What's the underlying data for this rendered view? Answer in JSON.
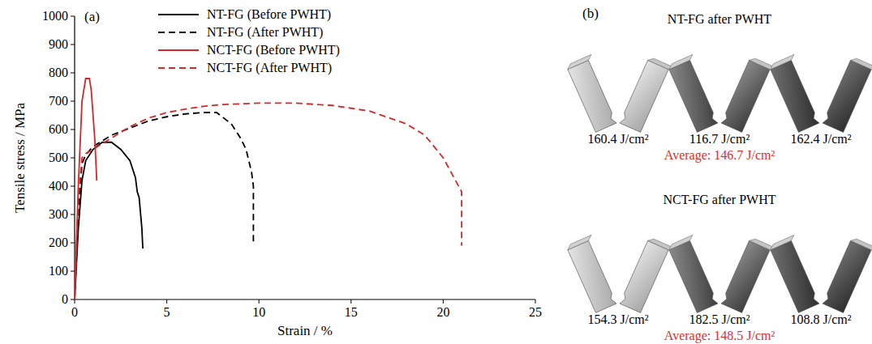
{
  "chart_data": {
    "type": "line",
    "title": "(a)",
    "x_label": "Strain / %",
    "y_label": "Tensile stress / MPa",
    "xlim": [
      0,
      25
    ],
    "xticks": [
      0,
      5,
      10,
      15,
      20,
      25
    ],
    "ylim": [
      0,
      1000
    ],
    "yticks": [
      0,
      100,
      200,
      300,
      400,
      500,
      600,
      700,
      800,
      900,
      1000
    ],
    "grid": false,
    "legend": "top",
    "series": [
      {
        "name": "NT-FG (Before PWHT)",
        "color": "#000000",
        "line_style": "solid",
        "x": [
          0,
          0.2,
          0.4,
          0.6,
          1.0,
          1.5,
          2.0,
          2.5,
          3.0,
          3.3,
          3.4,
          3.5,
          3.65,
          3.7
        ],
        "values": [
          0,
          250,
          420,
          490,
          530,
          555,
          555,
          530,
          490,
          430,
          380,
          360,
          250,
          180
        ]
      },
      {
        "name": "NT-FG (After PWHT)",
        "color": "#000000",
        "line_style": "dashed",
        "x": [
          0,
          0.2,
          0.4,
          0.6,
          1.0,
          2.0,
          3.0,
          4.0,
          5.0,
          6.0,
          7.0,
          7.7,
          8.5,
          9.0,
          9.3,
          9.6,
          9.7,
          9.7
        ],
        "values": [
          0,
          300,
          480,
          510,
          540,
          580,
          605,
          630,
          645,
          655,
          660,
          660,
          620,
          570,
          530,
          450,
          400,
          200
        ]
      },
      {
        "name": "NCT-FG (Before PWHT)",
        "color": "#d62728",
        "line_style": "solid",
        "x": [
          0,
          0.2,
          0.4,
          0.6,
          0.8,
          0.9,
          1.0,
          1.1,
          1.2
        ],
        "values": [
          0,
          400,
          700,
          780,
          780,
          740,
          650,
          560,
          420
        ]
      },
      {
        "name": "NCT-FG (After PWHT)",
        "color": "#d62728",
        "line_style": "dashed",
        "x": [
          0,
          0.2,
          0.4,
          0.6,
          1.0,
          2.0,
          3.0,
          4.0,
          5.0,
          6.0,
          7.0,
          8.0,
          10.0,
          12.0,
          14.0,
          16.0,
          18.0,
          19.0,
          20.0,
          21.0,
          21.0
        ],
        "values": [
          0,
          350,
          500,
          515,
          530,
          570,
          610,
          640,
          660,
          672,
          682,
          688,
          693,
          693,
          685,
          665,
          620,
          580,
          500,
          380,
          190
        ]
      }
    ]
  },
  "panel_b": {
    "label": "(b)",
    "groups": [
      {
        "title": "NT-FG after PWHT",
        "energies": [
          "160.4 J/cm²",
          "116.7 J/cm²",
          "162.4 J/cm²"
        ],
        "average": "Average: 146.7 J/cm²"
      },
      {
        "title": "NCT-FG after PWHT",
        "energies": [
          "154.3 J/cm²",
          "182.5 J/cm²",
          "108.8 J/cm²"
        ],
        "average": "Average: 148.5 J/cm²"
      }
    ]
  }
}
